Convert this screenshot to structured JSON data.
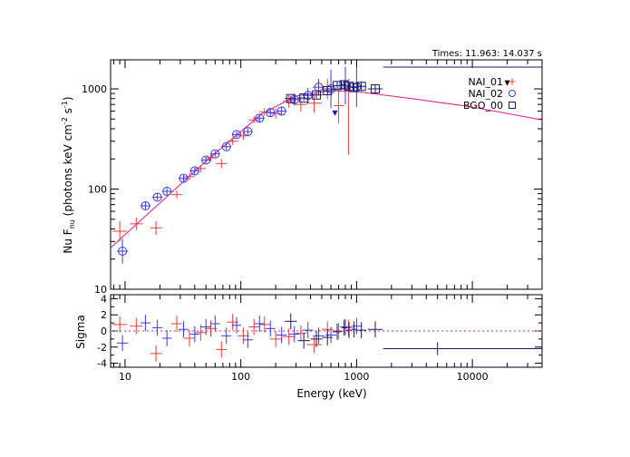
{
  "chart_data": {
    "type": "scatter",
    "title": "",
    "times_label": "Times: 11.963: 14.037 s",
    "xlabel": "Energy (keV)",
    "ylabel_main": "Nu F",
    "ylabel_sub": "nu",
    "ylabel_units": "(photons keV cm",
    "ylabel_exp1": "-2",
    "ylabel_mid": " s",
    "ylabel_exp2": "-1",
    "ylabel_close": ")",
    "residual_ylabel": "Sigma",
    "x_scale": "log",
    "y_scale": "log",
    "xlim": [
      7.5,
      40000
    ],
    "ylim": [
      10,
      1950
    ],
    "residual_ylim": [
      -4.5,
      4.5
    ],
    "x_ticks": [
      {
        "v": 10,
        "label": "10"
      },
      {
        "v": 100,
        "label": "100"
      },
      {
        "v": 1000,
        "label": "1000"
      },
      {
        "v": 10000,
        "label": "10000"
      }
    ],
    "y_ticks": [
      {
        "v": 10,
        "label": "10"
      },
      {
        "v": 100,
        "label": "100"
      },
      {
        "v": 1000,
        "label": "1000"
      }
    ],
    "residual_ticks": [
      {
        "v": 4,
        "label": "4"
      },
      {
        "v": 2,
        "label": "2"
      },
      {
        "v": 0,
        "label": "0"
      },
      {
        "v": -2,
        "label": "-2"
      },
      {
        "v": -4,
        "label": "-4"
      }
    ],
    "legend_placement": "top-right",
    "model": {
      "color": "#e8198c",
      "points": [
        [
          7.5,
          26
        ],
        [
          50,
          190
        ],
        [
          150,
          560
        ],
        [
          300,
          850
        ],
        [
          600,
          960
        ],
        [
          1000,
          940
        ],
        [
          3000,
          800
        ],
        [
          10000,
          660
        ],
        [
          40000,
          490
        ]
      ]
    },
    "upper_limits": [
      {
        "x": 650,
        "y": 560,
        "color": "#1010d0"
      },
      {
        "x": 20000,
        "y": 1120,
        "color": "#000000"
      }
    ],
    "series": [
      {
        "name": "NAI_01",
        "marker": "plus",
        "color": "#ef3b3b",
        "points": [
          {
            "x": 9,
            "xlo": 7.8,
            "xhi": 10.4,
            "y": 38,
            "ylo": 30,
            "yhi": 48,
            "r": 0.8
          },
          {
            "x": 12.5,
            "xlo": 11,
            "xhi": 14.2,
            "y": 45,
            "ylo": 39,
            "yhi": 52,
            "r": 0.6
          },
          {
            "x": 18.5,
            "xlo": 16.5,
            "xhi": 20.8,
            "y": 41,
            "ylo": 35,
            "yhi": 48,
            "r": -2.8
          },
          {
            "x": 28,
            "xlo": 25,
            "xhi": 31,
            "y": 88,
            "ylo": 80,
            "yhi": 97,
            "r": 0.9
          },
          {
            "x": 36,
            "xlo": 32,
            "xhi": 40,
            "y": 133,
            "ylo": 122,
            "yhi": 145,
            "r": -0.9
          },
          {
            "x": 45,
            "xlo": 40,
            "xhi": 50,
            "y": 160,
            "ylo": 147,
            "yhi": 174,
            "r": -0.2
          },
          {
            "x": 55,
            "xlo": 49,
            "xhi": 62,
            "y": 205,
            "ylo": 190,
            "yhi": 221,
            "r": 0.3
          },
          {
            "x": 68,
            "xlo": 61,
            "xhi": 76,
            "y": 180,
            "ylo": 162,
            "yhi": 199,
            "r": -2.3
          },
          {
            "x": 85,
            "xlo": 76,
            "xhi": 95,
            "y": 300,
            "ylo": 276,
            "yhi": 326,
            "r": 1.1
          },
          {
            "x": 105,
            "xlo": 94,
            "xhi": 117,
            "y": 340,
            "ylo": 312,
            "yhi": 370,
            "r": -0.6
          },
          {
            "x": 130,
            "xlo": 117,
            "xhi": 145,
            "y": 490,
            "ylo": 450,
            "yhi": 533,
            "r": 0.5
          },
          {
            "x": 160,
            "xlo": 145,
            "xhi": 178,
            "y": 590,
            "ylo": 540,
            "yhi": 644,
            "r": 0.8
          },
          {
            "x": 200,
            "xlo": 178,
            "xhi": 225,
            "y": 570,
            "ylo": 505,
            "yhi": 642,
            "r": -1.0
          },
          {
            "x": 260,
            "xlo": 230,
            "xhi": 295,
            "y": 750,
            "ylo": 650,
            "yhi": 865,
            "r": -0.7
          },
          {
            "x": 330,
            "xlo": 295,
            "xhi": 370,
            "y": 700,
            "ylo": 590,
            "yhi": 830,
            "r": -0.3
          },
          {
            "x": 430,
            "xlo": 370,
            "xhi": 500,
            "y": 720,
            "ylo": 580,
            "yhi": 895,
            "r": -1.7
          },
          {
            "x": 560,
            "xlo": 500,
            "xhi": 630,
            "y": 1000,
            "ylo": 790,
            "yhi": 1265,
            "r": 0.2
          },
          {
            "x": 700,
            "xlo": 630,
            "xhi": 780,
            "y": 680,
            "ylo": 450,
            "yhi": 1030,
            "r": 0.0
          },
          {
            "x": 850,
            "xlo": 780,
            "xhi": 930,
            "y": 1030,
            "ylo": 220,
            "yhi": 1260,
            "r": 0.4
          }
        ]
      },
      {
        "name": "NAI_02",
        "marker": "circle",
        "color": "#3a3ae8",
        "points": [
          {
            "x": 9.5,
            "xlo": 8.5,
            "xhi": 10.6,
            "y": 24,
            "ylo": 18,
            "yhi": 32,
            "r": -1.5
          },
          {
            "x": 15,
            "xlo": 13.6,
            "xhi": 16.6,
            "y": 68,
            "ylo": 62,
            "yhi": 75,
            "r": 1.0
          },
          {
            "x": 19,
            "xlo": 17.2,
            "xhi": 21,
            "y": 83,
            "ylo": 77,
            "yhi": 90,
            "r": 0.4
          },
          {
            "x": 23,
            "xlo": 21,
            "xhi": 25.3,
            "y": 95,
            "ylo": 88,
            "yhi": 103,
            "r": -0.9
          },
          {
            "x": 32,
            "xlo": 29,
            "xhi": 35.3,
            "y": 128,
            "ylo": 119,
            "yhi": 138,
            "r": 0.2
          },
          {
            "x": 40,
            "xlo": 36.3,
            "xhi": 44,
            "y": 152,
            "ylo": 141,
            "yhi": 164,
            "r": -0.4
          },
          {
            "x": 50,
            "xlo": 45.4,
            "xhi": 55,
            "y": 195,
            "ylo": 182,
            "yhi": 209,
            "r": 0.5
          },
          {
            "x": 60,
            "xlo": 54.5,
            "xhi": 66,
            "y": 225,
            "ylo": 210,
            "yhi": 241,
            "r": 0.9
          },
          {
            "x": 75,
            "xlo": 68,
            "xhi": 82.6,
            "y": 265,
            "ylo": 246,
            "yhi": 285,
            "r": -0.6
          },
          {
            "x": 92,
            "xlo": 83.5,
            "xhi": 101,
            "y": 350,
            "ylo": 326,
            "yhi": 376,
            "r": 0.7
          },
          {
            "x": 115,
            "xlo": 104,
            "xhi": 127,
            "y": 375,
            "ylo": 347,
            "yhi": 405,
            "r": -1.1
          },
          {
            "x": 145,
            "xlo": 131,
            "xhi": 160,
            "y": 510,
            "ylo": 470,
            "yhi": 553,
            "r": 0.9
          },
          {
            "x": 180,
            "xlo": 163,
            "xhi": 199,
            "y": 580,
            "ylo": 530,
            "yhi": 635,
            "r": 0.3
          },
          {
            "x": 225,
            "xlo": 203,
            "xhi": 249,
            "y": 600,
            "ylo": 540,
            "yhi": 666,
            "r": -0.5
          },
          {
            "x": 290,
            "xlo": 262,
            "xhi": 321,
            "y": 780,
            "ylo": 680,
            "yhi": 895,
            "r": -0.4
          },
          {
            "x": 380,
            "xlo": 342,
            "xhi": 422,
            "y": 860,
            "ylo": 720,
            "yhi": 1027,
            "r": 0.1
          },
          {
            "x": 470,
            "xlo": 420,
            "xhi": 526,
            "y": 1040,
            "ylo": 860,
            "yhi": 1258,
            "r": -0.6
          },
          {
            "x": 600,
            "xlo": 540,
            "xhi": 667,
            "y": 1000,
            "ylo": 640,
            "yhi": 1560,
            "r": -0.5
          },
          {
            "x": 800,
            "xlo": 720,
            "xhi": 889,
            "y": 1080,
            "ylo": 700,
            "yhi": 1670,
            "r": 0.5
          },
          {
            "x": 1000,
            "xlo": 900,
            "xhi": 1111,
            "y": 1050,
            "ylo": 660,
            "yhi": 1670,
            "r": 0.6
          }
        ]
      },
      {
        "name": "BGO_00",
        "marker": "square",
        "color": "#1a1a66",
        "points": [
          {
            "x": 270,
            "xlo": 240,
            "xhi": 305,
            "y": 800,
            "ylo": 760,
            "yhi": 842,
            "r": 1.2
          },
          {
            "x": 350,
            "xlo": 310,
            "xhi": 395,
            "y": 810,
            "ylo": 760,
            "yhi": 863,
            "r": -1.2
          },
          {
            "x": 450,
            "xlo": 400,
            "xhi": 506,
            "y": 870,
            "ylo": 810,
            "yhi": 934,
            "r": -1.0
          },
          {
            "x": 560,
            "xlo": 505,
            "xhi": 620,
            "y": 960,
            "ylo": 890,
            "yhi": 1035,
            "r": -0.8
          },
          {
            "x": 680,
            "xlo": 620,
            "xhi": 746,
            "y": 1080,
            "ylo": 990,
            "yhi": 1178,
            "r": -0.1
          },
          {
            "x": 780,
            "xlo": 745,
            "xhi": 817,
            "y": 1100,
            "ylo": 1000,
            "yhi": 1210,
            "r": 0.4
          },
          {
            "x": 860,
            "xlo": 817,
            "xhi": 905,
            "y": 1060,
            "ylo": 960,
            "yhi": 1170,
            "r": 0.1
          },
          {
            "x": 950,
            "xlo": 905,
            "xhi": 997,
            "y": 1030,
            "ylo": 930,
            "yhi": 1140,
            "r": 0.2
          },
          {
            "x": 1100,
            "xlo": 1000,
            "xhi": 1210,
            "y": 1060,
            "ylo": 950,
            "yhi": 1183,
            "r": 0.1
          },
          {
            "x": 1450,
            "xlo": 1250,
            "xhi": 1680,
            "y": 1000,
            "ylo": 900,
            "yhi": 1111,
            "r": 0.2
          },
          {
            "x": 5000,
            "xlo": 1700,
            "xhi": 40000,
            "y": 1650,
            "ylo": 1650,
            "yhi": 1650,
            "r": -2.2,
            "rlo": -3.0,
            "rhi": -1.4
          }
        ]
      }
    ]
  }
}
